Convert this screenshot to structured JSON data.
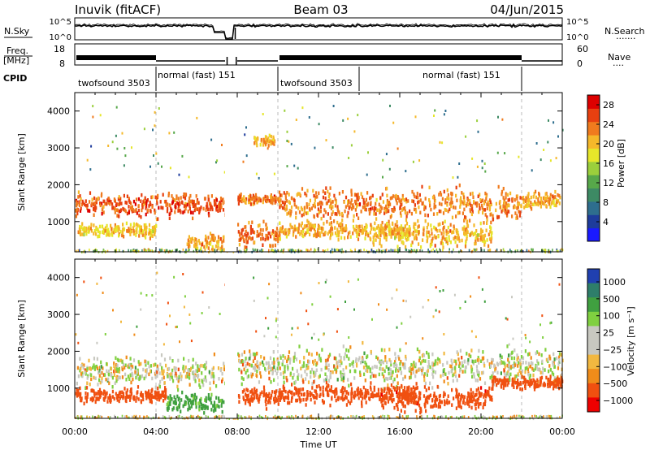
{
  "header": {
    "station": "Inuvik (fitACF)",
    "beam": "Beam 03",
    "date": "04/Jun/2015"
  },
  "left_labels": {
    "nsky": "N.Sky",
    "freq_line1": "Freq.",
    "freq_line2": "[MHz]",
    "cpid": "CPID"
  },
  "right_labels": {
    "nsearch": "N.Search",
    "nsearch_dots": "·······",
    "nave": "Nave",
    "nave_dots": "····"
  },
  "noise_panel": {
    "left_ticks": [
      "10^5",
      "10^0"
    ],
    "right_ticks": [
      "10^5",
      "10^0"
    ]
  },
  "freq_panel": {
    "left_ticks": [
      "18",
      "8"
    ],
    "right_ticks": [
      "60",
      "0"
    ]
  },
  "cpid_segments": [
    {
      "label": "twofsound 3503",
      "start_hour": 0,
      "end_hour": 4
    },
    {
      "label": "normal (fast) 151",
      "start_hour": 4,
      "end_hour": 10
    },
    {
      "label": "twofsound 3503",
      "start_hour": 10,
      "end_hour": 14
    },
    {
      "label": "normal (fast) 151",
      "start_hour": 14,
      "end_hour": 22
    }
  ],
  "chart_data": [
    {
      "type": "heatmap",
      "quantity": "Power",
      "ylabel": "Slant Range [km]",
      "ylim": [
        180,
        4500
      ],
      "yticks": [
        "1000",
        "2000",
        "3000",
        "4000"
      ],
      "colorbar_label": "Power [dB]",
      "colorbar_ticks": [
        "28",
        "24",
        "20",
        "16",
        "12",
        "8",
        "4"
      ],
      "colorbar_range": [
        0,
        30
      ],
      "dashed_lines_hours": [
        4,
        10,
        22
      ],
      "data_gap_hours": [
        7.4,
        8.0
      ],
      "scatter_bands": [
        {
          "start_hour": 0.0,
          "end_hour": 7.4,
          "center_km": 1500,
          "width_km": 450,
          "power_db": 26
        },
        {
          "start_hour": 0.0,
          "end_hour": 4.0,
          "center_km": 800,
          "width_km": 250,
          "power_db": 20
        },
        {
          "start_hour": 5.5,
          "end_hour": 7.3,
          "center_km": 500,
          "width_km": 300,
          "power_db": 22
        },
        {
          "start_hour": 8.0,
          "end_hour": 10.0,
          "center_km": 1650,
          "width_km": 200,
          "power_db": 24
        },
        {
          "start_hour": 8.0,
          "end_hour": 10.0,
          "center_km": 650,
          "width_km": 500,
          "power_db": 25
        },
        {
          "start_hour": 8.8,
          "end_hour": 9.8,
          "center_km": 3250,
          "width_km": 200,
          "power_db": 22
        },
        {
          "start_hour": 10.0,
          "end_hour": 22.0,
          "center_km": 1500,
          "width_km": 600,
          "power_db": 24
        },
        {
          "start_hour": 10.0,
          "end_hour": 16.5,
          "center_km": 800,
          "width_km": 300,
          "power_db": 22
        },
        {
          "start_hour": 14.5,
          "end_hour": 20.5,
          "center_km": 700,
          "width_km": 500,
          "power_db": 21
        },
        {
          "start_hour": 22.0,
          "end_hour": 24.0,
          "center_km": 1600,
          "width_km": 300,
          "power_db": 22
        }
      ]
    },
    {
      "type": "heatmap",
      "quantity": "Velocity",
      "ylabel": "Slant Range [km]",
      "ylim": [
        180,
        4500
      ],
      "yticks": [
        "1000",
        "2000",
        "3000",
        "4000"
      ],
      "colorbar_label": "Velocity [m s⁻¹]",
      "colorbar_ticks": [
        "1000",
        "500",
        "100",
        "25",
        "−25",
        "−100",
        "−500",
        "−1000"
      ],
      "dashed_lines_hours": [
        4,
        10,
        22
      ],
      "data_gap_hours": [
        7.4,
        8.0
      ],
      "scatter_bands": [
        {
          "start_hour": 0.0,
          "end_hour": 7.4,
          "center_km": 1500,
          "width_km": 550,
          "velocity": 0
        },
        {
          "start_hour": 0.0,
          "end_hour": 4.5,
          "center_km": 850,
          "width_km": 300,
          "velocity": -300
        },
        {
          "start_hour": 4.5,
          "end_hour": 7.3,
          "center_km": 650,
          "width_km": 350,
          "velocity": 150
        },
        {
          "start_hour": 8.0,
          "end_hour": 24.0,
          "center_km": 1650,
          "width_km": 700,
          "velocity": 0
        },
        {
          "start_hour": 8.0,
          "end_hour": 10.0,
          "center_km": 800,
          "width_km": 350,
          "velocity": -200
        },
        {
          "start_hour": 10.0,
          "end_hour": 17.0,
          "center_km": 900,
          "width_km": 400,
          "velocity": -300
        },
        {
          "start_hour": 15.0,
          "end_hour": 20.5,
          "center_km": 750,
          "width_km": 450,
          "velocity": -400
        },
        {
          "start_hour": 20.5,
          "end_hour": 24.0,
          "center_km": 1200,
          "width_km": 250,
          "velocity": -200
        }
      ]
    }
  ],
  "xaxis": {
    "label": "Time UT",
    "ticks": [
      "00:00",
      "04:00",
      "08:00",
      "12:00",
      "16:00",
      "20:00",
      "00:00"
    ],
    "range_hours": [
      0,
      24
    ]
  },
  "colors": {
    "power_scale": [
      "#1a1aff",
      "#1e3c9c",
      "#2e6e8e",
      "#3d8a64",
      "#57a84a",
      "#9bcf3c",
      "#e6e62a",
      "#f5b82a",
      "#f07b1e",
      "#e84010",
      "#dd0000"
    ],
    "velocity_scale": [
      "#ee0000",
      "#f05010",
      "#f08c1a",
      "#f2b840",
      "#c8c8c0",
      "#c8c8c0",
      "#80d040",
      "#40a040",
      "#2e7e6a",
      "#2040b0"
    ]
  }
}
